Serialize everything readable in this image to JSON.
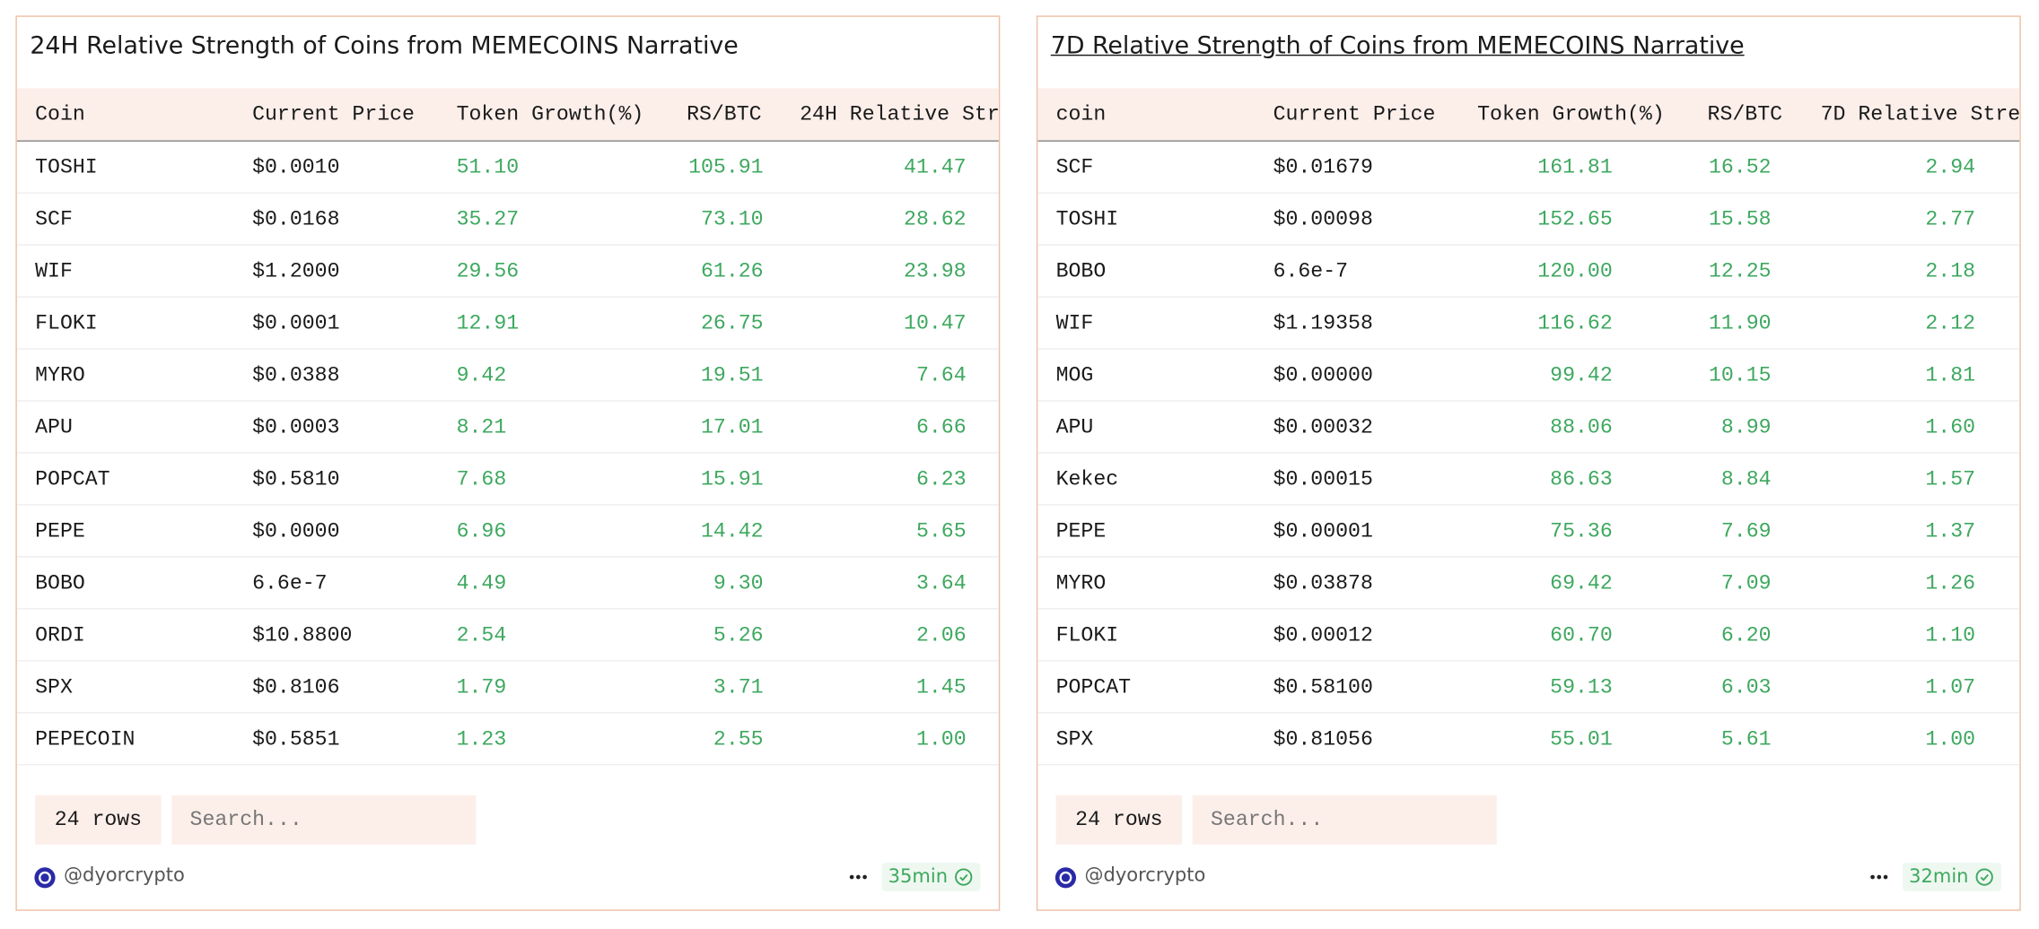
{
  "panels": [
    {
      "title": "24H Relative Strength of Coins from MEMECOINS Narrative",
      "columns": [
        "Coin",
        "Current Price",
        "Token Growth(%)",
        "RS/BTC",
        "24H Relative Str"
      ],
      "rows": [
        [
          "TOSHI",
          "$0.0010",
          "51.10",
          "105.91",
          "41.47"
        ],
        [
          "SCF",
          "$0.0168",
          "35.27",
          "73.10",
          "28.62"
        ],
        [
          "WIF",
          "$1.2000",
          "29.56",
          "61.26",
          "23.98"
        ],
        [
          "FLOKI",
          "$0.0001",
          "12.91",
          "26.75",
          "10.47"
        ],
        [
          "MYRO",
          "$0.0388",
          "9.42",
          "19.51",
          "7.64"
        ],
        [
          "APU",
          "$0.0003",
          "8.21",
          "17.01",
          "6.66"
        ],
        [
          "POPCAT",
          "$0.5810",
          "7.68",
          "15.91",
          "6.23"
        ],
        [
          "PEPE",
          "$0.0000",
          "6.96",
          "14.42",
          "5.65"
        ],
        [
          "BOBO",
          "6.6e-7",
          "4.49",
          "9.30",
          "3.64"
        ],
        [
          "ORDI",
          "$10.8800",
          "2.54",
          "5.26",
          "2.06"
        ],
        [
          "SPX",
          "$0.8106",
          "1.79",
          "3.71",
          "1.45"
        ],
        [
          "PEPECOIN",
          "$0.5851",
          "1.23",
          "2.55",
          "1.00"
        ]
      ],
      "row_count": "24 rows",
      "search_placeholder": "Search...",
      "author": "@dyorcrypto",
      "age": "35min"
    },
    {
      "title": "7D Relative Strength of Coins from MEMECOINS Narrative",
      "columns": [
        "coin",
        "Current Price",
        "Token Growth(%)",
        "RS/BTC",
        "7D Relative Stre"
      ],
      "rows": [
        [
          "SCF",
          "$0.01679",
          "161.81",
          "16.52",
          "2.94"
        ],
        [
          "TOSHI",
          "$0.00098",
          "152.65",
          "15.58",
          "2.77"
        ],
        [
          "BOBO",
          "6.6e-7",
          "120.00",
          "12.25",
          "2.18"
        ],
        [
          "WIF",
          "$1.19358",
          "116.62",
          "11.90",
          "2.12"
        ],
        [
          "MOG",
          "$0.00000",
          "99.42",
          "10.15",
          "1.81"
        ],
        [
          "APU",
          "$0.00032",
          "88.06",
          "8.99",
          "1.60"
        ],
        [
          "Kekec",
          "$0.00015",
          "86.63",
          "8.84",
          "1.57"
        ],
        [
          "PEPE",
          "$0.00001",
          "75.36",
          "7.69",
          "1.37"
        ],
        [
          "MYRO",
          "$0.03878",
          "69.42",
          "7.09",
          "1.26"
        ],
        [
          "FLOKI",
          "$0.00012",
          "60.70",
          "6.20",
          "1.10"
        ],
        [
          "POPCAT",
          "$0.58100",
          "59.13",
          "6.03",
          "1.07"
        ],
        [
          "SPX",
          "$0.81056",
          "55.01",
          "5.61",
          "1.00"
        ]
      ],
      "row_count": "24 rows",
      "search_placeholder": "Search...",
      "author": "@dyorcrypto",
      "age": "32min"
    }
  ]
}
